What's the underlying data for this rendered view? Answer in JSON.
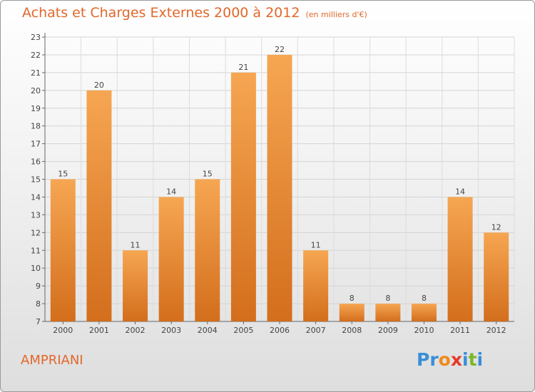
{
  "header": {
    "title": "Achats et Charges Externes 2000 à 2012",
    "subtitle": "(en milliers d'€)"
  },
  "commune": "AMPRIANI",
  "brand": {
    "name": "Proxiti",
    "letters": [
      "P",
      "r",
      "o",
      "x",
      "i",
      "t",
      "i"
    ],
    "colors": [
      "#3a8ed8",
      "#3a8ed8",
      "#f08a1c",
      "#e53a2a",
      "#3a8ed8",
      "#79b829",
      "#3a8ed8"
    ]
  },
  "colors": {
    "bar_top": "#f6a652",
    "bar_bottom": "#d36e1c",
    "title": "#e2672a"
  },
  "chart_data": {
    "type": "bar",
    "title": "Achats et Charges Externes 2000 à 2012",
    "subtitle": "(en milliers d'€)",
    "categories": [
      "2000",
      "2001",
      "2002",
      "2003",
      "2004",
      "2005",
      "2006",
      "2007",
      "2008",
      "2009",
      "2010",
      "2011",
      "2012"
    ],
    "values": [
      15,
      20,
      11,
      14,
      15,
      21,
      22,
      11,
      8,
      8,
      8,
      14,
      12
    ],
    "ylim": [
      7,
      23
    ],
    "yticks": [
      7,
      8,
      9,
      10,
      11,
      12,
      13,
      14,
      15,
      16,
      17,
      18,
      19,
      20,
      21,
      22,
      23
    ],
    "grid": true
  }
}
